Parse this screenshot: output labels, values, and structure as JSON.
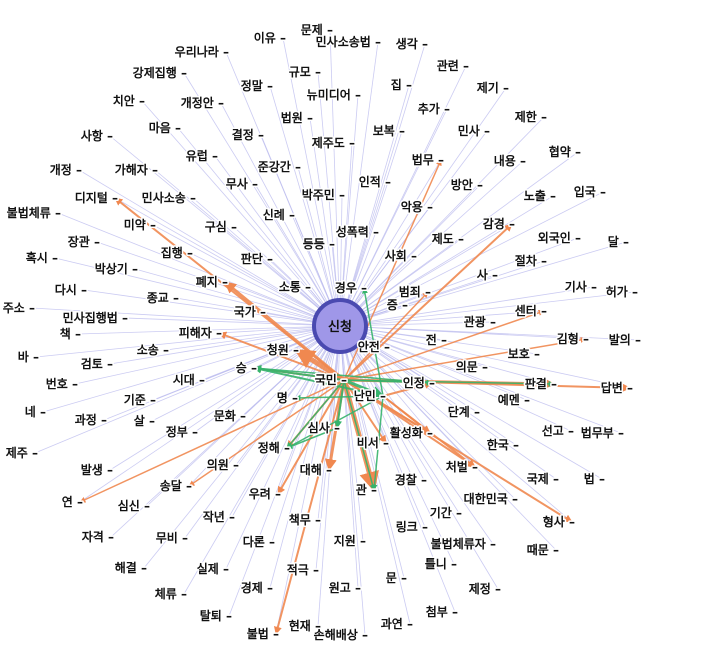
{
  "colors": {
    "background": "#ffffff",
    "spoke": "#b9b9ee",
    "orange": "#f08850",
    "green": "#35b36c",
    "hub_fill": "#9f97e8",
    "hub_stroke": "#4a4ab0",
    "label": "#111111"
  },
  "hub": {
    "label": "신청"
  },
  "nodes": [
    {
      "id": "문제",
      "label": "문제"
    },
    {
      "id": "이유",
      "label": "이유"
    },
    {
      "id": "민사소송법",
      "label": "민사소송법"
    },
    {
      "id": "생각",
      "label": "생각"
    },
    {
      "id": "우리나라",
      "label": "우리나라"
    },
    {
      "id": "관련",
      "label": "관련"
    },
    {
      "id": "강제집행",
      "label": "강제집행"
    },
    {
      "id": "규모",
      "label": "규모"
    },
    {
      "id": "집",
      "label": "집"
    },
    {
      "id": "정말",
      "label": "정말"
    },
    {
      "id": "뉴미디어",
      "label": "뉴미디어"
    },
    {
      "id": "제기",
      "label": "제기"
    },
    {
      "id": "치안",
      "label": "치안"
    },
    {
      "id": "개정안",
      "label": "개정안"
    },
    {
      "id": "추가",
      "label": "추가"
    },
    {
      "id": "법원",
      "label": "법원"
    },
    {
      "id": "마음",
      "label": "마음"
    },
    {
      "id": "결정",
      "label": "결정"
    },
    {
      "id": "보복",
      "label": "보복"
    },
    {
      "id": "민사",
      "label": "민사"
    },
    {
      "id": "제한",
      "label": "제한"
    },
    {
      "id": "사항",
      "label": "사항"
    },
    {
      "id": "제주도",
      "label": "제주도"
    },
    {
      "id": "법무",
      "label": "법무"
    },
    {
      "id": "유럽",
      "label": "유럽"
    },
    {
      "id": "준강간",
      "label": "준강간"
    },
    {
      "id": "내용",
      "label": "내용"
    },
    {
      "id": "협약",
      "label": "협약"
    },
    {
      "id": "개정",
      "label": "개정"
    },
    {
      "id": "가해자",
      "label": "가해자"
    },
    {
      "id": "무사",
      "label": "무사"
    },
    {
      "id": "인적",
      "label": "인적"
    },
    {
      "id": "방안",
      "label": "방안"
    },
    {
      "id": "박주민",
      "label": "박주민"
    },
    {
      "id": "노출",
      "label": "노출"
    },
    {
      "id": "입국",
      "label": "입국"
    },
    {
      "id": "디지털",
      "label": "디지털"
    },
    {
      "id": "민사소송",
      "label": "민사소송"
    },
    {
      "id": "악용",
      "label": "악용"
    },
    {
      "id": "불법체류",
      "label": "불법체류"
    },
    {
      "id": "신례",
      "label": "신례"
    },
    {
      "id": "미약",
      "label": "미약"
    },
    {
      "id": "구심",
      "label": "구심"
    },
    {
      "id": "성폭력",
      "label": "성폭력"
    },
    {
      "id": "감경",
      "label": "감경"
    },
    {
      "id": "제도",
      "label": "제도"
    },
    {
      "id": "외국인",
      "label": "외국인"
    },
    {
      "id": "달",
      "label": "달"
    },
    {
      "id": "장관",
      "label": "장관"
    },
    {
      "id": "집행",
      "label": "집행"
    },
    {
      "id": "판단",
      "label": "판단"
    },
    {
      "id": "등등",
      "label": "등등"
    },
    {
      "id": "사회",
      "label": "사회"
    },
    {
      "id": "절차",
      "label": "절차"
    },
    {
      "id": "혹시",
      "label": "혹시"
    },
    {
      "id": "박상기",
      "label": "박상기"
    },
    {
      "id": "사",
      "label": "사"
    },
    {
      "id": "폐지",
      "label": "폐지"
    },
    {
      "id": "소통",
      "label": "소통"
    },
    {
      "id": "경우",
      "label": "경우"
    },
    {
      "id": "다시",
      "label": "다시"
    },
    {
      "id": "기사",
      "label": "기사"
    },
    {
      "id": "허가",
      "label": "허가"
    },
    {
      "id": "범죄",
      "label": "범죄"
    },
    {
      "id": "주소",
      "label": "주소"
    },
    {
      "id": "종교",
      "label": "종교"
    },
    {
      "id": "증",
      "label": "증"
    },
    {
      "id": "센터",
      "label": "센터"
    },
    {
      "id": "민사집행법",
      "label": "민사집행법"
    },
    {
      "id": "국가",
      "label": "국가"
    },
    {
      "id": "관광",
      "label": "관광"
    },
    {
      "id": "김형",
      "label": "김형"
    },
    {
      "id": "발의",
      "label": "발의"
    },
    {
      "id": "책",
      "label": "책"
    },
    {
      "id": "피해자",
      "label": "피해자"
    },
    {
      "id": "전",
      "label": "전"
    },
    {
      "id": "소송",
      "label": "소송"
    },
    {
      "id": "청원",
      "label": "청원"
    },
    {
      "id": "안전",
      "label": "안전"
    },
    {
      "id": "보호",
      "label": "보호"
    },
    {
      "id": "바",
      "label": "바"
    },
    {
      "id": "검토",
      "label": "검토"
    },
    {
      "id": "의문",
      "label": "의문"
    },
    {
      "id": "승",
      "label": "승"
    },
    {
      "id": "국민",
      "label": "국민"
    },
    {
      "id": "판결",
      "label": "판결"
    },
    {
      "id": "답변",
      "label": "답변"
    },
    {
      "id": "번호",
      "label": "번호"
    },
    {
      "id": "시대",
      "label": "시대"
    },
    {
      "id": "인정",
      "label": "인정"
    },
    {
      "id": "난민",
      "label": "난민"
    },
    {
      "id": "예멘",
      "label": "예멘"
    },
    {
      "id": "기준",
      "label": "기준"
    },
    {
      "id": "명",
      "label": "명"
    },
    {
      "id": "네",
      "label": "네"
    },
    {
      "id": "과정",
      "label": "과정"
    },
    {
      "id": "문화",
      "label": "문화"
    },
    {
      "id": "단계",
      "label": "단계"
    },
    {
      "id": "선고",
      "label": "선고"
    },
    {
      "id": "법무부",
      "label": "법무부"
    },
    {
      "id": "정부",
      "label": "정부"
    },
    {
      "id": "심사",
      "label": "심사"
    },
    {
      "id": "활성화",
      "label": "활성화"
    },
    {
      "id": "비서",
      "label": "비서"
    },
    {
      "id": "제주",
      "label": "제주"
    },
    {
      "id": "살",
      "label": "살"
    },
    {
      "id": "정해",
      "label": "정해"
    },
    {
      "id": "한국",
      "label": "한국"
    },
    {
      "id": "발생",
      "label": "발생"
    },
    {
      "id": "의원",
      "label": "의원"
    },
    {
      "id": "대해",
      "label": "대해"
    },
    {
      "id": "처벌",
      "label": "처벌"
    },
    {
      "id": "국제",
      "label": "국제"
    },
    {
      "id": "법",
      "label": "법"
    },
    {
      "id": "송달",
      "label": "송달"
    },
    {
      "id": "경찰",
      "label": "경찰"
    },
    {
      "id": "연",
      "label": "연"
    },
    {
      "id": "심신",
      "label": "심신"
    },
    {
      "id": "우려",
      "label": "우려"
    },
    {
      "id": "관",
      "label": "관"
    },
    {
      "id": "대한민국",
      "label": "대한민국"
    },
    {
      "id": "작년",
      "label": "작년"
    },
    {
      "id": "기간",
      "label": "기간"
    },
    {
      "id": "형사",
      "label": "형사"
    },
    {
      "id": "책무",
      "label": "책무"
    },
    {
      "id": "링크",
      "label": "링크"
    },
    {
      "id": "자격",
      "label": "자격"
    },
    {
      "id": "무비",
      "label": "무비"
    },
    {
      "id": "불법체류자",
      "label": "불법체류자"
    },
    {
      "id": "다론",
      "label": "다론"
    },
    {
      "id": "지원",
      "label": "지원"
    },
    {
      "id": "때문",
      "label": "때문"
    },
    {
      "id": "해결",
      "label": "해결"
    },
    {
      "id": "실제",
      "label": "실제"
    },
    {
      "id": "틀니",
      "label": "틀니"
    },
    {
      "id": "적극",
      "label": "적극"
    },
    {
      "id": "체류",
      "label": "체류"
    },
    {
      "id": "경제",
      "label": "경제"
    },
    {
      "id": "문",
      "label": "문"
    },
    {
      "id": "제정",
      "label": "제정"
    },
    {
      "id": "원고",
      "label": "원고"
    },
    {
      "id": "탈퇴",
      "label": "탈퇴"
    },
    {
      "id": "첨부",
      "label": "첨부"
    },
    {
      "id": "현재",
      "label": "현재"
    },
    {
      "id": "과연",
      "label": "과연"
    },
    {
      "id": "불법",
      "label": "불법"
    },
    {
      "id": "손해배상",
      "label": "손해배상"
    }
  ],
  "highlighted_edges": [
    {
      "from": "국민",
      "to": "청원",
      "color": "orange",
      "weight": 5
    },
    {
      "from": "국민",
      "to": "피해자",
      "color": "orange",
      "weight": 2
    },
    {
      "from": "국민",
      "to": "폐지",
      "color": "orange",
      "weight": 3
    },
    {
      "from": "국민",
      "to": "디지털",
      "color": "orange",
      "weight": 2
    },
    {
      "from": "국민",
      "to": "감경",
      "color": "orange",
      "weight": 2
    },
    {
      "from": "국민",
      "to": "법무",
      "color": "orange",
      "weight": 1.5
    },
    {
      "from": "국민",
      "to": "범죄",
      "color": "orange",
      "weight": 1.5
    },
    {
      "from": "국민",
      "to": "센터",
      "color": "orange",
      "weight": 1.5
    },
    {
      "from": "국민",
      "to": "김형",
      "color": "orange",
      "weight": 1.5
    },
    {
      "from": "국민",
      "to": "판결",
      "color": "orange",
      "weight": 3
    },
    {
      "from": "국민",
      "to": "답변",
      "color": "orange",
      "weight": 2
    },
    {
      "from": "국민",
      "to": "처벌",
      "color": "orange",
      "weight": 2
    },
    {
      "from": "국민",
      "to": "형사",
      "color": "orange",
      "weight": 2
    },
    {
      "from": "국민",
      "to": "관",
      "color": "orange",
      "weight": 5
    },
    {
      "from": "국민",
      "to": "대해",
      "color": "orange",
      "weight": 3
    },
    {
      "from": "국민",
      "to": "정해",
      "color": "orange",
      "weight": 2
    },
    {
      "from": "국민",
      "to": "우려",
      "color": "orange",
      "weight": 2
    },
    {
      "from": "국민",
      "to": "불법",
      "color": "orange",
      "weight": 2
    },
    {
      "from": "국민",
      "to": "연",
      "color": "orange",
      "weight": 1.5
    },
    {
      "from": "국민",
      "to": "송달",
      "color": "orange",
      "weight": 1.5
    },
    {
      "from": "국민",
      "to": "승",
      "color": "orange",
      "weight": 2
    },
    {
      "from": "국민",
      "to": "활성화",
      "color": "orange",
      "weight": 2
    },
    {
      "from": "국민",
      "to": "비서",
      "color": "orange",
      "weight": 2
    },
    {
      "from": "난민",
      "to": "활성화",
      "color": "orange",
      "weight": 2
    },
    {
      "from": "난민",
      "to": "처벌",
      "color": "orange",
      "weight": 2
    },
    {
      "from": "난민",
      "to": "인정",
      "color": "orange",
      "weight": 2
    },
    {
      "from": "국민",
      "to": "난민",
      "color": "green",
      "weight": 3
    },
    {
      "from": "국민",
      "to": "승",
      "color": "green",
      "weight": 2
    },
    {
      "from": "국민",
      "to": "심사",
      "color": "green",
      "weight": 2
    },
    {
      "from": "국민",
      "to": "정해",
      "color": "green",
      "weight": 1.5
    },
    {
      "from": "국민",
      "to": "관",
      "color": "green",
      "weight": 1.5
    },
    {
      "from": "국민",
      "to": "인정",
      "color": "green",
      "weight": 1.5
    },
    {
      "from": "난민",
      "to": "승",
      "color": "green",
      "weight": 2
    },
    {
      "from": "난민",
      "to": "명",
      "color": "green",
      "weight": 1.5
    },
    {
      "from": "난민",
      "to": "정해",
      "color": "green",
      "weight": 1.5
    },
    {
      "from": "난민",
      "to": "관",
      "color": "green",
      "weight": 1.5
    },
    {
      "from": "난민",
      "to": "경우",
      "color": "green",
      "weight": 1.5
    },
    {
      "from": "승",
      "to": "인정",
      "color": "green",
      "weight": 1.5
    },
    {
      "from": "심사",
      "to": "정해",
      "color": "green",
      "weight": 1.5
    },
    {
      "from": "국민",
      "to": "판결",
      "color": "green",
      "weight": 1.5
    }
  ]
}
